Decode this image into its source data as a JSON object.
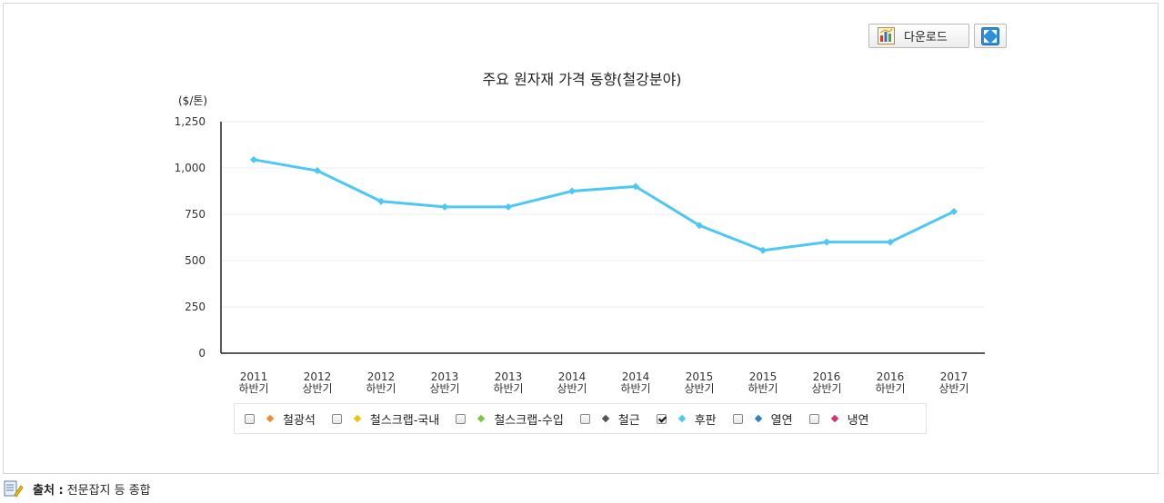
{
  "toolbar": {
    "download_label": "다운로드"
  },
  "chart_data": {
    "type": "line",
    "title": "주요 원자재 가격 동향(철강분야)",
    "unit_label": "($/톤)",
    "ylim": [
      0,
      1250
    ],
    "yticks": [
      0,
      250,
      500,
      750,
      1000,
      1250
    ],
    "ytick_labels": [
      "0",
      "250",
      "500",
      "750",
      "1,000",
      "1,250"
    ],
    "grid": true,
    "categories": [
      [
        "2011",
        "하반기"
      ],
      [
        "2012",
        "상반기"
      ],
      [
        "2012",
        "하반기"
      ],
      [
        "2013",
        "상반기"
      ],
      [
        "2013",
        "하반기"
      ],
      [
        "2014",
        "상반기"
      ],
      [
        "2014",
        "하반기"
      ],
      [
        "2015",
        "상반기"
      ],
      [
        "2015",
        "하반기"
      ],
      [
        "2016",
        "상반기"
      ],
      [
        "2016",
        "하반기"
      ],
      [
        "2017",
        "상반기"
      ]
    ],
    "series": [
      {
        "name": "후판",
        "color": "#4dc8f5",
        "visible": true,
        "values": [
          1045,
          985,
          820,
          790,
          790,
          875,
          900,
          690,
          555,
          600,
          600,
          765
        ]
      }
    ],
    "legend_placement": "bottom",
    "legend": [
      {
        "label": "철광석",
        "color": "#f58a2e",
        "checked": false
      },
      {
        "label": "철스크랩-국내",
        "color": "#f2c200",
        "checked": false
      },
      {
        "label": "철스크랩-수입",
        "color": "#7ac943",
        "checked": false
      },
      {
        "label": "철근",
        "color": "#555555",
        "checked": false
      },
      {
        "label": "후판",
        "color": "#4dc8f5",
        "checked": true
      },
      {
        "label": "열연",
        "color": "#2f7fc2",
        "checked": false
      },
      {
        "label": "냉연",
        "color": "#d6336c",
        "checked": false
      }
    ]
  },
  "source": {
    "label": "출처 :",
    "text": "전문잡지 등 종합"
  }
}
